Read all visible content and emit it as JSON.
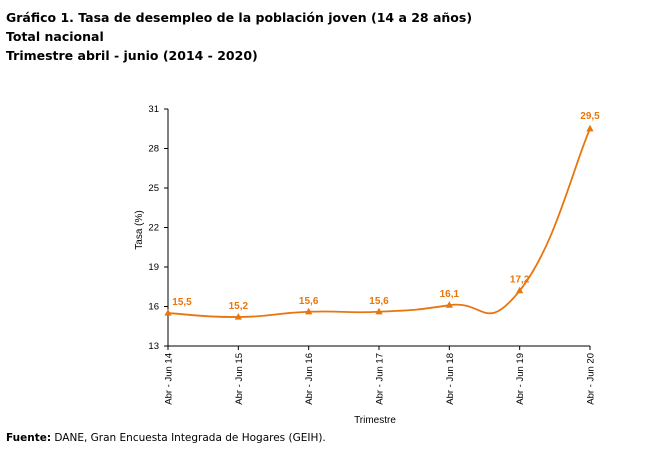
{
  "header": {
    "title": "Gráfico 1. Tasa de desempleo de la población joven (14 a 28 años)",
    "subtitle_1": "Total nacional",
    "subtitle_2": "Trimestre abril - junio (2014 - 2020)"
  },
  "footer": {
    "source_label": "Fuente:",
    "source_text": " DANE, Gran Encuesta Integrada de Hogares (GEIH)."
  },
  "chart_data": {
    "type": "line",
    "categories": [
      "Abr - Jun 14",
      "Abr - Jun 15",
      "Abr - Jun 16",
      "Abr - Jun 17",
      "Abr - Jun 18",
      "Abr - Jun 19",
      "Abr - Jun 20"
    ],
    "values": [
      15.5,
      15.2,
      15.6,
      15.6,
      16.1,
      17.2,
      29.5
    ],
    "data_labels": [
      "15,5",
      "15,2",
      "15,6",
      "15,6",
      "16,1",
      "17,2",
      "29,5"
    ],
    "xlabel": "Trimestre",
    "ylabel": "Tasa (%)",
    "ylim": [
      13,
      31
    ],
    "yticks": [
      13,
      16,
      19,
      22,
      25,
      28,
      31
    ],
    "ytick_labels": [
      "13",
      "16",
      "19",
      "22",
      "25",
      "28",
      "31"
    ],
    "grid": false,
    "marker": "triangle",
    "color": "#E8760F"
  }
}
